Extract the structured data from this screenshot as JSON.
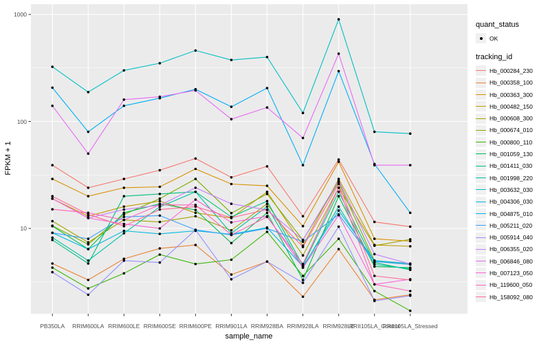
{
  "figure": {
    "y_axis_title": "FPKM + 1",
    "x_axis_title": "sample_name",
    "legend_quant": {
      "title": "quant_status",
      "items": [
        {
          "label": "OK",
          "marker": "point-icon"
        }
      ]
    },
    "legend_tracking": {
      "title": "tracking_id"
    }
  },
  "chart_data": {
    "type": "line",
    "title": "",
    "xlabel": "sample_name",
    "ylabel": "FPKM + 1",
    "y_scale": "log10",
    "y_ticks": [
      10,
      100,
      1000
    ],
    "y_tick_labels": [
      "10",
      "100",
      "1000"
    ],
    "ylim": [
      1.55,
      1250
    ],
    "grid": "white major and minor gridlines on grey panel",
    "panel_background": "#EBEBEB",
    "gridline_color": "#FFFFFF",
    "point_color": "#000000",
    "tick_text_color": "#4d4d4d",
    "legend_position": "right",
    "legend_key_fill": "#F0F0F0",
    "categories": [
      "PB350LA",
      "RRIM600LA",
      "RRIM600LE",
      "RRIM600SE",
      "RRIM600PE",
      "RRIM901LA",
      "RRIM928BA",
      "RRIM928LA",
      "RRIM928LE",
      "RRII105LA_Control",
      "RRII105LA_Stressed"
    ],
    "series": [
      {
        "name": "Hb_000284_230",
        "color": "#F8766D",
        "values": [
          39,
          24,
          29,
          35,
          45,
          30,
          38,
          13,
          44,
          11.5,
          10.4
        ]
      },
      {
        "name": "Hb_000358_100",
        "color": "#EA8331",
        "values": [
          4.7,
          3.3,
          5.2,
          6.5,
          7.0,
          3.7,
          4.9,
          2.3,
          6.4,
          2.15,
          2.4
        ]
      },
      {
        "name": "Hb_000363_300",
        "color": "#D89000",
        "values": [
          29,
          20,
          24,
          24.5,
          36,
          26,
          25,
          10.5,
          42,
          8.0,
          7.6
        ]
      },
      {
        "name": "Hb_000482_150",
        "color": "#C09B00",
        "values": [
          19,
          13,
          16,
          18,
          14,
          12.5,
          22,
          6.9,
          29,
          7.0,
          6.8
        ]
      },
      {
        "name": "Hb_000608_300",
        "color": "#A3A500",
        "values": [
          11.7,
          7.4,
          12,
          11.5,
          13,
          9.6,
          17,
          5.6,
          24,
          6.9,
          7.9
        ]
      },
      {
        "name": "Hb_000674_010",
        "color": "#7CAE00",
        "values": [
          10.6,
          7.1,
          13.5,
          19,
          29,
          13.9,
          21,
          7.8,
          27,
          5.0,
          4.6
        ]
      },
      {
        "name": "Hb_000800_110",
        "color": "#39B600",
        "values": [
          4.3,
          2.75,
          3.8,
          5.7,
          4.65,
          5.1,
          9.3,
          3.6,
          8.0,
          2.6,
          1.7
        ]
      },
      {
        "name": "Hb_001059_130",
        "color": "#00BB4E",
        "values": [
          10.5,
          6.4,
          14,
          17,
          14.9,
          7.3,
          14,
          3.3,
          20,
          4.4,
          4.3
        ]
      },
      {
        "name": "Hb_001411_030",
        "color": "#00BF7D",
        "values": [
          7.8,
          4.7,
          20,
          21,
          22,
          12.8,
          18,
          4.5,
          22,
          4.8,
          4.1
        ]
      },
      {
        "name": "Hb_001998_220",
        "color": "#00C1A3",
        "values": [
          8.2,
          5.0,
          9.0,
          15.9,
          22,
          9.0,
          16,
          4.3,
          16,
          4.6,
          4.2
        ]
      },
      {
        "name": "Hb_003632_030",
        "color": "#00BFC4",
        "values": [
          324,
          188,
          300,
          350,
          460,
          375,
          400,
          120,
          900,
          80,
          77
        ]
      },
      {
        "name": "Hb_004306_030",
        "color": "#00BADE",
        "values": [
          9.1,
          6.4,
          9.5,
          8.9,
          9.5,
          8.8,
          10.2,
          4.4,
          14.7,
          5.0,
          4.7
        ]
      },
      {
        "name": "Hb_004875_010",
        "color": "#00B0F6",
        "values": [
          207,
          80,
          140,
          165,
          200,
          137,
          205,
          39,
          295,
          40,
          14
        ]
      },
      {
        "name": "Hb_005211_020",
        "color": "#35A2FF",
        "values": [
          9.1,
          8.0,
          12.8,
          13.2,
          9.7,
          8.7,
          10.0,
          7.5,
          13.5,
          4.9,
          4.6
        ]
      },
      {
        "name": "Hb_005914_040",
        "color": "#9590FF",
        "values": [
          3.9,
          2.4,
          5.0,
          4.8,
          9.7,
          3.35,
          4.9,
          3.1,
          10.4,
          2.1,
          2.35
        ]
      },
      {
        "name": "Hb_006355_020",
        "color": "#C77CFF",
        "values": [
          19,
          12.5,
          15,
          16.5,
          24,
          17,
          14.9,
          7.8,
          28,
          5.75,
          4.65
        ]
      },
      {
        "name": "Hb_006846_080",
        "color": "#E76BF3",
        "values": [
          140,
          50,
          160,
          170,
          195,
          105,
          135,
          70,
          430,
          39,
          39
        ]
      },
      {
        "name": "Hb_007123_050",
        "color": "#FA62DB",
        "values": [
          19,
          12.5,
          11,
          10,
          18.6,
          11.4,
          13,
          4.3,
          13.3,
          3.0,
          3.35
        ]
      },
      {
        "name": "Hb_119600_050",
        "color": "#FF62BC",
        "values": [
          15.1,
          14,
          12,
          16.6,
          16.6,
          8.7,
          12.8,
          4.65,
          24,
          3.0,
          2.6
        ]
      },
      {
        "name": "Hb_158092_080",
        "color": "#FF6A98",
        "values": [
          20,
          13.5,
          10.5,
          15,
          16,
          12.6,
          15,
          6.7,
          26,
          3.6,
          3.3
        ]
      }
    ]
  }
}
